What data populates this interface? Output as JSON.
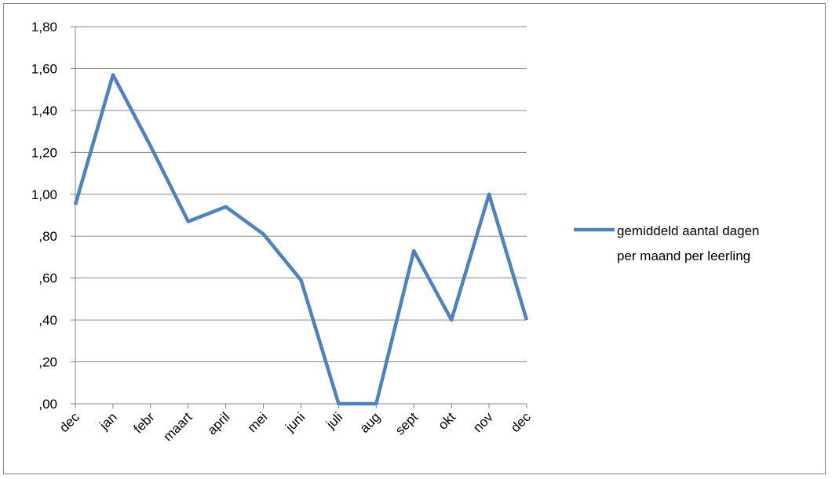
{
  "chart_data": {
    "type": "line",
    "categories": [
      "dec",
      "jan",
      "febr",
      "maart",
      "april",
      "mei",
      "juni",
      "juli",
      "aug",
      "sept",
      "okt",
      "nov",
      "dec"
    ],
    "series": [
      {
        "name_lines": [
          "gemiddeld aantal dagen",
          "per maand per leerling"
        ],
        "values": [
          0.95,
          1.57,
          1.23,
          0.87,
          0.94,
          0.81,
          0.59,
          0.0,
          0.0,
          0.73,
          0.4,
          1.0,
          0.4
        ],
        "color": "#4F81BD"
      }
    ],
    "ylim": [
      0,
      1.8
    ],
    "yticks": [
      0,
      0.2,
      0.4,
      0.6,
      0.8,
      1.0,
      1.2,
      1.4,
      1.6,
      1.8
    ],
    "ytick_labels": [
      ",00",
      ",20",
      ",40",
      ",60",
      ",80",
      "1,00",
      "1,20",
      "1,40",
      "1,60",
      "1,80"
    ],
    "grid": true,
    "legend_position": "right",
    "gridline_color": "#868686",
    "axis_color": "#868686"
  }
}
